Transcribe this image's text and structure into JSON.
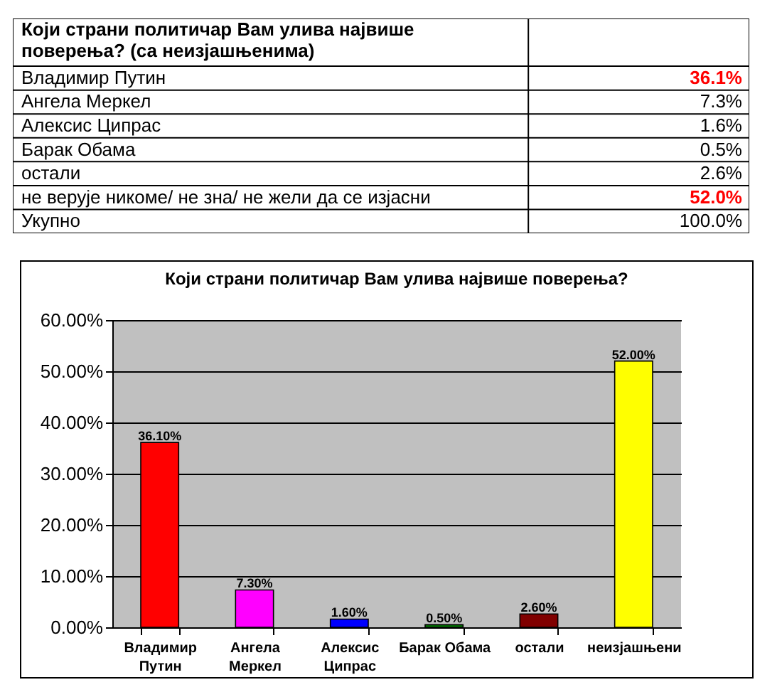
{
  "chart_data": [
    {
      "type": "other",
      "title": "Који страни политичар Вам улива највише поверења? (са неизјашњенима)",
      "categories": [
        "Владимир Путин",
        "Ангела Меркел",
        "Алексис Ципрас",
        "Барак Обама",
        "остали",
        "не верује никоме/ не зна/ не жели да се изјасни",
        "Укупно"
      ],
      "value_labels": [
        "36.1%",
        "7.3%",
        "1.6%",
        "0.5%",
        "2.6%",
        "52.0%",
        "100.0%"
      ],
      "colors": [
        "#ff0000",
        "#000000",
        "#000000",
        "#000000",
        "#000000",
        "#ff0000",
        "#000000"
      ]
    },
    {
      "type": "bar",
      "title": "Који страни политичар Вам улива највише поверења?",
      "categories": [
        "Владимир Путин",
        "Ангела Меркел",
        "Алексис Ципрас",
        "Барак Обама",
        "остали",
        "неизјашњени"
      ],
      "values": [
        36.1,
        7.3,
        1.6,
        0.5,
        2.6,
        52.0
      ],
      "value_labels": [
        "36.10%",
        "7.30%",
        "1.60%",
        "0.50%",
        "2.60%",
        "52.00%"
      ],
      "colors": [
        "#ff0000",
        "#ff00ff",
        "#0000ff",
        "#008000",
        "#800000",
        "#ffff00"
      ],
      "ylim": [
        0,
        60
      ],
      "yticks": [
        {
          "value": 0,
          "label": "0.00%"
        },
        {
          "value": 10,
          "label": "10.00%"
        },
        {
          "value": 20,
          "label": "20.00%"
        },
        {
          "value": 30,
          "label": "30.00%"
        },
        {
          "value": 40,
          "label": "40.00%"
        },
        {
          "value": 50,
          "label": "50.00%"
        },
        {
          "value": 60,
          "label": "60.00%"
        }
      ],
      "grid": "y"
    }
  ]
}
